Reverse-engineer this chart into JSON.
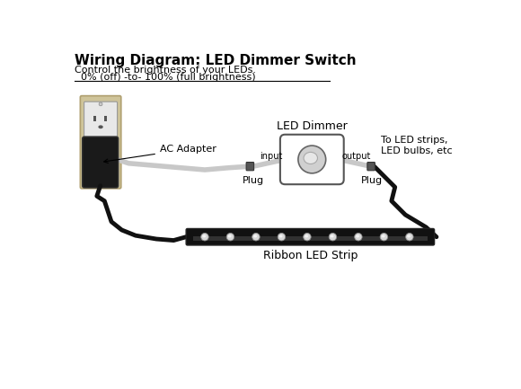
{
  "title": "Wiring Diagram: LED Dimmer Switch",
  "subtitle1": "Control the brightness of your LEDs.",
  "subtitle2": "  0% (off) -to- 100% (full brightness)",
  "bg_color": "#ffffff",
  "line_color": "#000000",
  "title_fontsize": 11,
  "subtitle_fontsize": 8,
  "label_fontsize": 8,
  "small_label_fontsize": 7,
  "outlet_wall_color": "#cfc49a",
  "adapter_color": "#1a1a1a",
  "wire_gray": "#c8c8c8",
  "wire_black": "#111111",
  "dimmer_box_color": "#ffffff",
  "dimmer_knob_outer": "#d0d0d0",
  "dimmer_knob_inner": "#efefef"
}
